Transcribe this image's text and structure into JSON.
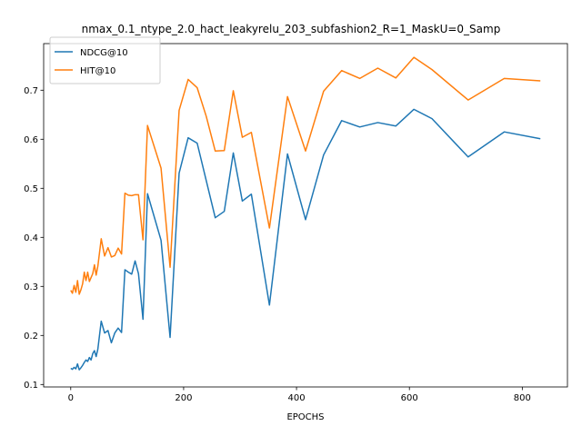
{
  "chart_data": {
    "type": "line",
    "title": "nmax_0.1_ntype_2.0_hact_leakyrelu_203_subfashion2_R=1_MaskU=0_Samp",
    "xlabel": "EPOCHS",
    "ylabel": "",
    "xlim": [
      -48,
      880
    ],
    "ylim": [
      0.095,
      0.795
    ],
    "xticks": [
      0,
      200,
      400,
      600,
      800
    ],
    "yticks": [
      0.1,
      0.2,
      0.3,
      0.4,
      0.5,
      0.6,
      0.7
    ],
    "legend_position": "top-left",
    "grid": false,
    "series": [
      {
        "name": "NDCG@10",
        "color": "#1f77b4",
        "x": [
          0,
          3,
          6,
          9,
          12,
          15,
          18,
          21,
          24,
          27,
          30,
          33,
          36,
          39,
          42,
          45,
          48,
          54,
          60,
          66,
          72,
          78,
          84,
          90,
          96,
          102,
          108,
          114,
          120,
          128,
          136,
          160,
          176,
          192,
          208,
          224,
          240,
          256,
          272,
          288,
          304,
          320,
          352,
          384,
          416,
          448,
          480,
          512,
          544,
          576,
          608,
          640,
          704,
          768,
          832
        ],
        "y": [
          0.133,
          0.131,
          0.135,
          0.132,
          0.142,
          0.13,
          0.134,
          0.139,
          0.145,
          0.15,
          0.147,
          0.155,
          0.15,
          0.163,
          0.169,
          0.157,
          0.172,
          0.229,
          0.205,
          0.21,
          0.185,
          0.205,
          0.215,
          0.206,
          0.334,
          0.329,
          0.325,
          0.352,
          0.326,
          0.233,
          0.489,
          0.394,
          0.196,
          0.531,
          0.603,
          0.592,
          0.516,
          0.44,
          0.453,
          0.572,
          0.474,
          0.488,
          0.262,
          0.57,
          0.436,
          0.568,
          0.638,
          0.625,
          0.634,
          0.627,
          0.661,
          0.642,
          0.564,
          0.615,
          0.601
        ]
      },
      {
        "name": "HIT@10",
        "color": "#ff7f0e",
        "x": [
          0,
          3,
          6,
          9,
          12,
          15,
          18,
          21,
          24,
          27,
          30,
          33,
          36,
          39,
          42,
          45,
          48,
          54,
          60,
          66,
          72,
          78,
          84,
          90,
          96,
          102,
          108,
          114,
          120,
          128,
          136,
          160,
          176,
          192,
          208,
          224,
          240,
          256,
          272,
          288,
          304,
          320,
          352,
          384,
          416,
          448,
          480,
          512,
          544,
          576,
          608,
          640,
          704,
          768,
          832
        ],
        "y": [
          0.292,
          0.286,
          0.302,
          0.288,
          0.312,
          0.284,
          0.293,
          0.305,
          0.329,
          0.312,
          0.329,
          0.31,
          0.318,
          0.326,
          0.344,
          0.323,
          0.341,
          0.397,
          0.362,
          0.379,
          0.36,
          0.363,
          0.378,
          0.366,
          0.49,
          0.486,
          0.485,
          0.487,
          0.487,
          0.395,
          0.628,
          0.541,
          0.339,
          0.659,
          0.722,
          0.705,
          0.647,
          0.576,
          0.577,
          0.699,
          0.604,
          0.614,
          0.419,
          0.687,
          0.576,
          0.698,
          0.74,
          0.724,
          0.745,
          0.725,
          0.767,
          0.742,
          0.68,
          0.724,
          0.719
        ]
      }
    ]
  }
}
